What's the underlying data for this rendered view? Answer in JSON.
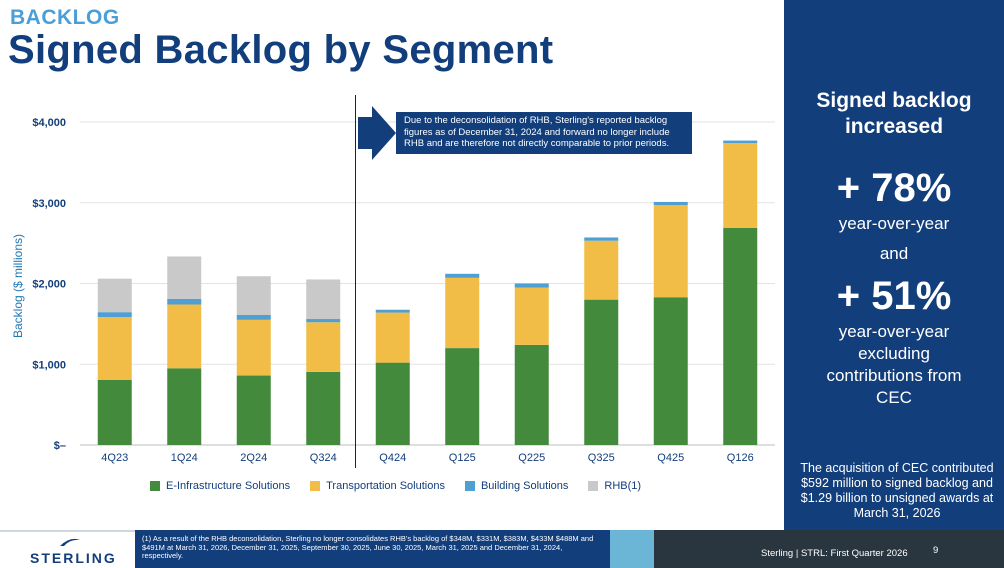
{
  "header": {
    "kicker": "BACKLOG",
    "title": "Signed Backlog by Segment"
  },
  "colors": {
    "e_infra": "#438a3c",
    "transportation": "#f2bd46",
    "building": "#4f9fd3",
    "rhb": "#c9c9c9",
    "navy": "#123e7c"
  },
  "chart_data": {
    "type": "bar",
    "stacked": true,
    "categories": [
      "4Q23",
      "1Q24",
      "2Q24",
      "Q324",
      "Q424",
      "Q125",
      "Q225",
      "Q325",
      "Q425",
      "Q126"
    ],
    "series": [
      {
        "name": "E-Infrastructure Solutions",
        "color": "#438a3c",
        "values": [
          805,
          950,
          860,
          905,
          1020,
          1200,
          1240,
          1800,
          1830,
          2690
        ]
      },
      {
        "name": "Transportation Solutions",
        "color": "#f2bd46",
        "values": [
          780,
          790,
          690,
          615,
          620,
          870,
          710,
          730,
          1140,
          1050
        ]
      },
      {
        "name": "Building Solutions",
        "color": "#4f9fd3",
        "values": [
          60,
          70,
          60,
          40,
          35,
          50,
          50,
          40,
          40,
          30
        ]
      },
      {
        "name": "RHB(1)",
        "color": "#c9c9c9",
        "values": [
          415,
          525,
          480,
          490,
          0,
          0,
          0,
          0,
          0,
          0
        ]
      }
    ],
    "ylabel": "Backlog ($ millions)",
    "ylim": [
      0,
      4000
    ],
    "yticks": [
      0,
      1000,
      2000,
      3000,
      4000
    ],
    "ytick_labels": [
      "$–",
      "$1,000",
      "$2,000",
      "$3,000",
      "$4,000"
    ],
    "grid": true,
    "legend_position": "bottom",
    "annotation": "Due to the deconsolidation of RHB, Sterling's reported  backlog figures as of December 31, 2024 and forward no longer include RHB and are therefore not directly comparable to prior periods."
  },
  "panel": {
    "heading_line1": "Signed backlog",
    "heading_line2": "increased",
    "stat1": "+ 78%",
    "stat1_caption": "year-over-year",
    "connector": "and",
    "stat2": "+ 51%",
    "stat2_caption_lines": [
      "year-over-year",
      "excluding",
      "contributions from",
      "CEC"
    ],
    "footnote": "The acquisition of CEC contributed $592 million to signed backlog and $1.29 billion to unsigned awards  at March 31, 2026"
  },
  "footer": {
    "logo_text": "STERLING",
    "footnote": "(1) As a result of the RHB deconsolidation, Sterling no longer consolidates RHB's backlog of $348M, $331M, $383M, $433M $488M and $491M at March 31, 2026, December 31, 2025, September 30, 2025, June 30, 2025, March 31, 2025 and December 31, 2024, respectively.",
    "right_text": "Sterling | STRL:  First Quarter  2026",
    "page_number": "9"
  }
}
